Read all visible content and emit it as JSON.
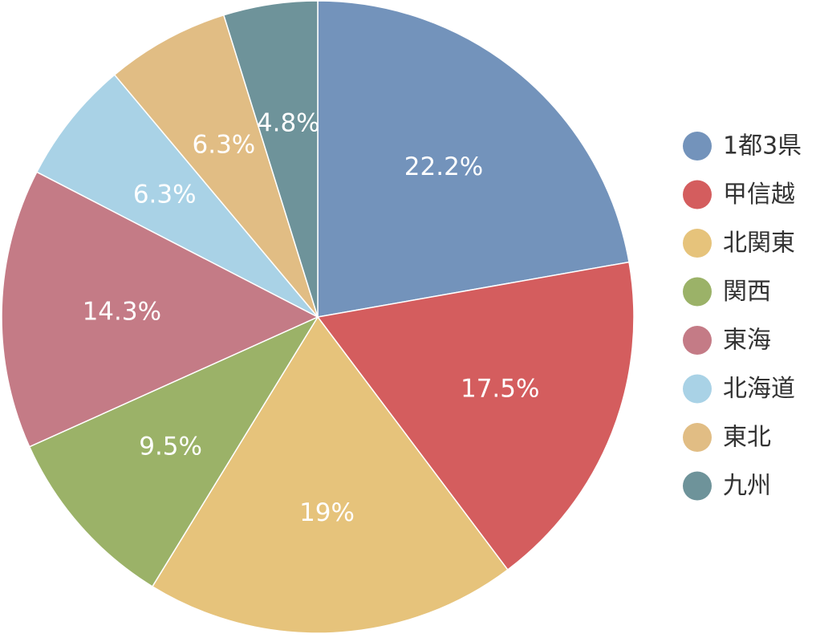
{
  "chart_data": {
    "type": "pie",
    "title": "",
    "start_angle_deg": 0,
    "direction": "clockwise",
    "legend_position": "right",
    "slices": [
      {
        "label": "1都3県",
        "value": 22.2,
        "value_label": "22.2%",
        "color": "#7393bb"
      },
      {
        "label": "甲信越",
        "value": 17.5,
        "value_label": "17.5%",
        "color": "#d45d5e"
      },
      {
        "label": "北関東",
        "value": 19.0,
        "value_label": "19%",
        "color": "#e6c37b"
      },
      {
        "label": "関西",
        "value": 9.5,
        "value_label": "9.5%",
        "color": "#9bb268"
      },
      {
        "label": "東海",
        "value": 14.3,
        "value_label": "14.3%",
        "color": "#c47b86"
      },
      {
        "label": "北海道",
        "value": 6.3,
        "value_label": "6.3%",
        "color": "#a9d2e6"
      },
      {
        "label": "東北",
        "value": 6.3,
        "value_label": "6.3%",
        "color": "#e1bd84"
      },
      {
        "label": "九州",
        "value": 4.8,
        "value_label": "4.8%",
        "color": "#6e939a"
      }
    ]
  }
}
